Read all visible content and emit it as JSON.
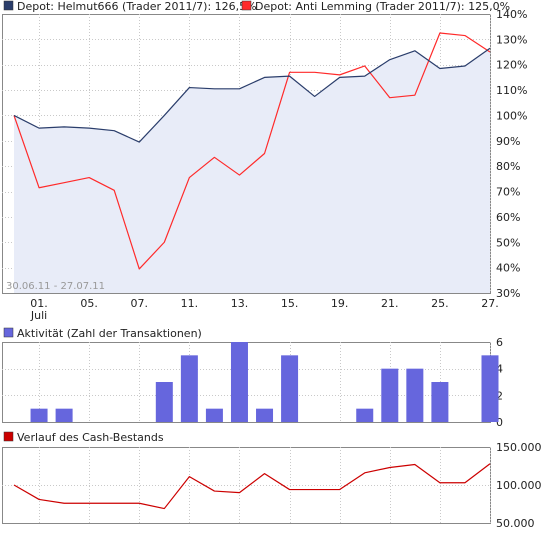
{
  "colors": {
    "helmut": "#2a3d6b",
    "anti": "#ff2a2a",
    "area_fill": "#e8ecf8",
    "activity_bar": "#6666dd",
    "cash_line": "#cc0000"
  },
  "chart_data": [
    {
      "type": "line",
      "panel": "depot",
      "legend": [
        {
          "name": "Depot: Helmut666 (Trader 2011/7): 126,5%",
          "color_key": "helmut"
        },
        {
          "name": "Depot: Anti Lemming (Trader 2011/7): 125,0%",
          "color_key": "anti"
        }
      ],
      "date_range_label": "30.06.11 - 27.07.11",
      "x_tick_labels": [
        "01.",
        "05.",
        "07.",
        "11.",
        "13.",
        "15.",
        "19.",
        "21.",
        "25.",
        "27."
      ],
      "x_tick_positions": [
        1,
        3,
        5,
        7,
        9,
        11,
        13,
        15,
        17,
        19
      ],
      "x_sublabel": "Juli",
      "ylim": [
        30,
        140
      ],
      "y_ticks": [
        30,
        40,
        50,
        60,
        70,
        80,
        90,
        100,
        110,
        120,
        130,
        140
      ],
      "y_tick_labels": [
        "30%",
        "40%",
        "50%",
        "60%",
        "70%",
        "80%",
        "90%",
        "100%",
        "110%",
        "120%",
        "130%",
        "140%"
      ],
      "x": [
        0,
        1,
        2,
        3,
        4,
        5,
        6,
        7,
        8,
        9,
        10,
        11,
        12,
        13,
        14,
        15,
        16,
        17,
        18,
        19
      ],
      "series": [
        {
          "name": "Helmut666",
          "color_key": "helmut",
          "filled": true,
          "values": [
            100,
            95,
            95.5,
            95,
            94,
            89.5,
            100,
            111,
            110.5,
            110.5,
            115,
            115.5,
            107.5,
            115,
            115.5,
            122,
            125.5,
            118.5,
            119.5,
            126.5
          ]
        },
        {
          "name": "Anti Lemming",
          "color_key": "anti",
          "filled": false,
          "values": [
            100,
            71.5,
            73.5,
            75.5,
            70.5,
            39.5,
            50,
            75.5,
            83.5,
            76.5,
            85,
            117,
            117,
            116,
            119.5,
            107,
            108,
            132.5,
            131.5,
            125
          ]
        }
      ]
    },
    {
      "type": "bar",
      "panel": "activity",
      "legend": [
        {
          "name": "Aktivität (Zahl der Transaktionen)",
          "color_key": "activity_bar"
        }
      ],
      "ylim": [
        0,
        6
      ],
      "y_ticks": [
        0,
        2,
        4,
        6
      ],
      "y_tick_labels": [
        "0",
        "2",
        "4",
        "6"
      ],
      "x": [
        0,
        1,
        2,
        3,
        4,
        5,
        6,
        7,
        8,
        9,
        10,
        11,
        12,
        13,
        14,
        15,
        16,
        17,
        18,
        19
      ],
      "values": [
        0,
        1,
        1,
        0,
        0,
        0,
        3,
        5,
        1,
        6,
        1,
        5,
        0,
        0,
        1,
        4,
        4,
        3,
        0,
        5
      ]
    },
    {
      "type": "line",
      "panel": "cash",
      "legend": [
        {
          "name": "Verlauf des Cash-Bestands",
          "color_key": "cash_line"
        }
      ],
      "ylim": [
        50000,
        150000
      ],
      "y_ticks": [
        50000,
        100000,
        150000
      ],
      "y_tick_labels": [
        "50.000",
        "100.000",
        "150.000"
      ],
      "x": [
        0,
        1,
        2,
        3,
        4,
        5,
        6,
        7,
        8,
        9,
        10,
        11,
        12,
        13,
        14,
        15,
        16,
        17,
        18,
        19
      ],
      "values": [
        100000,
        81000,
        76000,
        76000,
        76000,
        76000,
        69000,
        111000,
        92000,
        90000,
        115000,
        94000,
        94000,
        94000,
        116000,
        123000,
        127000,
        103000,
        103000,
        128000
      ]
    }
  ]
}
